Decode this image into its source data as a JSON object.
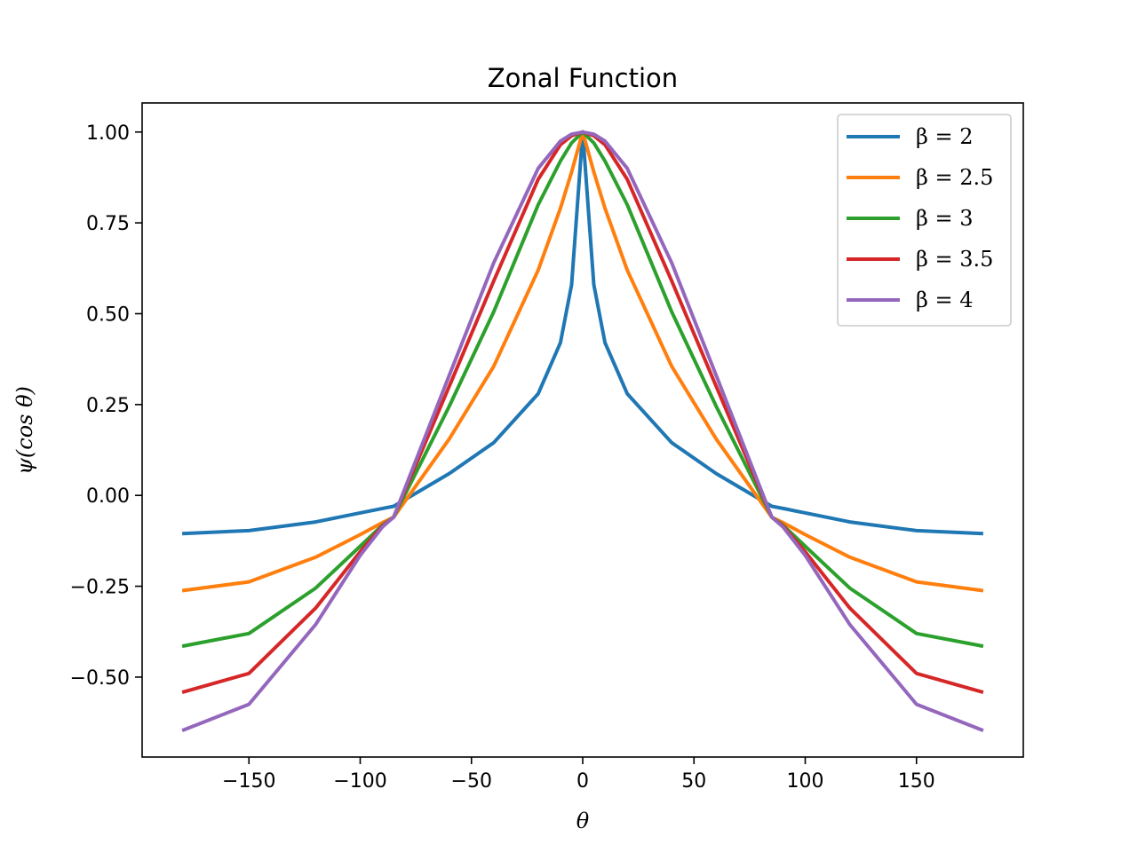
{
  "chart_data": {
    "type": "line",
    "title": "Zonal Function",
    "xlabel": "θ",
    "ylabel": "ψ(cos θ)",
    "xlim": [
      -198,
      198
    ],
    "ylim": [
      -0.72,
      1.08
    ],
    "xticks": [
      -150,
      -100,
      -50,
      0,
      50,
      100,
      150
    ],
    "xtick_labels": [
      "−150",
      "−100",
      "−50",
      "0",
      "50",
      "100",
      "150"
    ],
    "yticks": [
      -0.5,
      -0.25,
      0.0,
      0.25,
      0.5,
      0.75,
      1.0
    ],
    "ytick_labels": [
      "−0.50",
      "−0.25",
      "0.00",
      "0.25",
      "0.50",
      "0.75",
      "1.00"
    ],
    "grid": false,
    "legend_position": "top-right",
    "x": [
      -180,
      -150,
      -120,
      -100,
      -90,
      -85,
      -60,
      -40,
      -20,
      -10,
      -5,
      0,
      5,
      10,
      20,
      40,
      60,
      85,
      90,
      100,
      120,
      150,
      180
    ],
    "series": [
      {
        "name": "β = 2",
        "color": "#1f77b4",
        "values": [
          -0.105,
          -0.097,
          -0.073,
          -0.048,
          -0.036,
          -0.03,
          0.06,
          0.145,
          0.28,
          0.42,
          0.58,
          1.0,
          0.58,
          0.42,
          0.28,
          0.145,
          0.06,
          -0.03,
          -0.036,
          -0.048,
          -0.073,
          -0.097,
          -0.105
        ]
      },
      {
        "name": "β = 2.5",
        "color": "#ff7f0e",
        "values": [
          -0.262,
          -0.238,
          -0.17,
          -0.108,
          -0.075,
          -0.06,
          0.155,
          0.355,
          0.62,
          0.79,
          0.89,
          1.0,
          0.89,
          0.79,
          0.62,
          0.355,
          0.155,
          -0.06,
          -0.075,
          -0.108,
          -0.17,
          -0.238,
          -0.262
        ]
      },
      {
        "name": "β = 3",
        "color": "#2ca02c",
        "values": [
          -0.415,
          -0.38,
          -0.255,
          -0.14,
          -0.082,
          -0.06,
          0.245,
          0.505,
          0.8,
          0.92,
          0.97,
          1.0,
          0.97,
          0.92,
          0.8,
          0.505,
          0.245,
          -0.06,
          -0.082,
          -0.14,
          -0.255,
          -0.38,
          -0.415
        ]
      },
      {
        "name": "β = 3.5",
        "color": "#d62728",
        "values": [
          -0.542,
          -0.49,
          -0.31,
          -0.155,
          -0.084,
          -0.06,
          0.3,
          0.59,
          0.87,
          0.965,
          0.99,
          1.0,
          0.99,
          0.965,
          0.87,
          0.59,
          0.3,
          -0.06,
          -0.084,
          -0.155,
          -0.31,
          -0.49,
          -0.542
        ]
      },
      {
        "name": "β = 4",
        "color": "#9467bd",
        "values": [
          -0.647,
          -0.575,
          -0.355,
          -0.165,
          -0.087,
          -0.06,
          0.33,
          0.64,
          0.9,
          0.975,
          0.994,
          1.0,
          0.994,
          0.975,
          0.9,
          0.64,
          0.33,
          -0.06,
          -0.087,
          -0.165,
          -0.355,
          -0.575,
          -0.647
        ]
      }
    ]
  }
}
